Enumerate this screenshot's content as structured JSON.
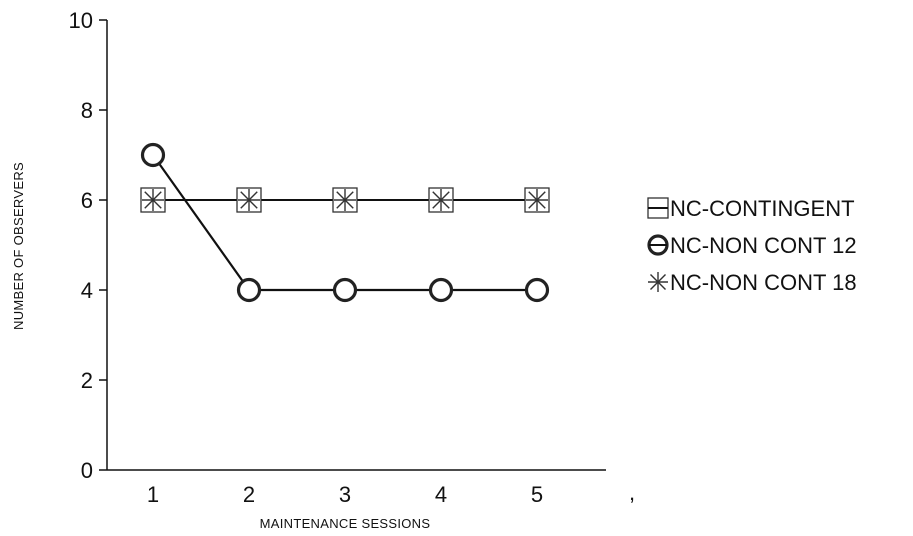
{
  "chart_data": {
    "type": "line",
    "xlabel": "MAINTENANCE SESSIONS",
    "ylabel": "NUMBER OF OBSERVERS",
    "x": [
      1,
      2,
      3,
      4,
      5
    ],
    "xticks": [
      "1",
      "2",
      "3",
      "4",
      "5"
    ],
    "yticks": [
      "0",
      "2",
      "4",
      "6",
      "8",
      "10"
    ],
    "xlim": [
      0.5,
      6
    ],
    "ylim": [
      0,
      10
    ],
    "grid": false,
    "legend_position": "right",
    "stray_mark": ",",
    "series": [
      {
        "name": "NC-CONTINGENT",
        "values": [
          6,
          6,
          6,
          6,
          6
        ],
        "marker": "square"
      },
      {
        "name": "NC-NON CONT 12",
        "values": [
          7,
          4,
          4,
          4,
          4
        ],
        "marker": "circle"
      },
      {
        "name": "NC-NON CONT 18",
        "values": [
          6,
          6,
          6,
          6,
          6
        ],
        "marker": "asterisk"
      }
    ],
    "colors": {
      "line": "#111111",
      "marker_stroke": "#222222",
      "square_fill": "#ffffff"
    }
  }
}
